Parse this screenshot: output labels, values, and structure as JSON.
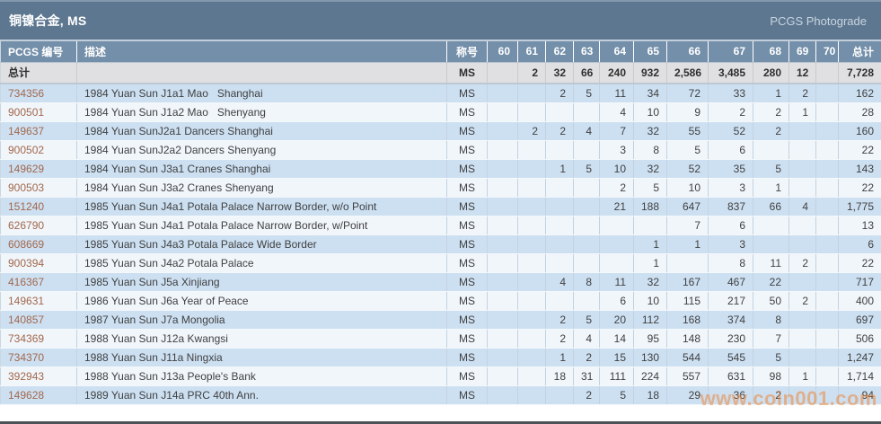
{
  "title": "铜镍合金, MS",
  "photograde_label": "PCGS Photograde",
  "watermark": "www.coin001.com",
  "colors": {
    "titlebar_bg": "#5d7790",
    "header_bg": "#748fa9",
    "totals_bg": "#e0e0e2",
    "row_odd_bg": "#cde0f2",
    "row_even_bg": "#f1f6fb",
    "pcgs_link": "#a2674b",
    "watermark": "#ee8638"
  },
  "columns": [
    "PCGS 编号",
    "描述",
    "称号",
    "60",
    "61",
    "62",
    "63",
    "64",
    "65",
    "66",
    "67",
    "68",
    "69",
    "70",
    "总计"
  ],
  "totals_row": {
    "label": "总计",
    "desc": "",
    "designation": "MS",
    "grades": [
      "",
      "2",
      "32",
      "66",
      "240",
      "932",
      "2,586",
      "3,485",
      "280",
      "12",
      ""
    ],
    "total": "7,728"
  },
  "rows": [
    {
      "pcgs": "734356",
      "desc": "1984 Yuan Sun J1a1 Mao   Shanghai",
      "designation": "MS",
      "grades": [
        "",
        "",
        "2",
        "5",
        "11",
        "34",
        "72",
        "33",
        "1",
        "2",
        ""
      ],
      "total": "162"
    },
    {
      "pcgs": "900501",
      "desc": "1984 Yuan Sun J1a2 Mao   Shenyang",
      "designation": "MS",
      "grades": [
        "",
        "",
        "",
        "",
        "4",
        "10",
        "9",
        "2",
        "2",
        "1",
        ""
      ],
      "total": "28"
    },
    {
      "pcgs": "149637",
      "desc": "1984 Yuan SunJ2a1 Dancers Shanghai",
      "designation": "MS",
      "grades": [
        "",
        "2",
        "2",
        "4",
        "7",
        "32",
        "55",
        "52",
        "2",
        "",
        ""
      ],
      "total": "160"
    },
    {
      "pcgs": "900502",
      "desc": "1984 Yuan SunJ2a2 Dancers Shenyang",
      "designation": "MS",
      "grades": [
        "",
        "",
        "",
        "",
        "3",
        "8",
        "5",
        "6",
        "",
        "",
        ""
      ],
      "total": "22"
    },
    {
      "pcgs": "149629",
      "desc": "1984 Yuan Sun J3a1 Cranes Shanghai",
      "designation": "MS",
      "grades": [
        "",
        "",
        "1",
        "5",
        "10",
        "32",
        "52",
        "35",
        "5",
        "",
        ""
      ],
      "total": "143"
    },
    {
      "pcgs": "900503",
      "desc": "1984 Yuan Sun J3a2 Cranes Shenyang",
      "designation": "MS",
      "grades": [
        "",
        "",
        "",
        "",
        "2",
        "5",
        "10",
        "3",
        "1",
        "",
        ""
      ],
      "total": "22"
    },
    {
      "pcgs": "151240",
      "desc": "1985 Yuan Sun J4a1 Potala Palace Narrow Border, w/o Point",
      "designation": "MS",
      "grades": [
        "",
        "",
        "",
        "",
        "21",
        "188",
        "647",
        "837",
        "66",
        "4",
        ""
      ],
      "total": "1,775"
    },
    {
      "pcgs": "626790",
      "desc": "1985 Yuan Sun J4a1 Potala Palace Narrow Border, w/Point",
      "designation": "MS",
      "grades": [
        "",
        "",
        "",
        "",
        "",
        "",
        "7",
        "6",
        "",
        "",
        ""
      ],
      "total": "13"
    },
    {
      "pcgs": "608669",
      "desc": "1985 Yuan Sun J4a3 Potala Palace Wide Border",
      "designation": "MS",
      "grades": [
        "",
        "",
        "",
        "",
        "",
        "1",
        "1",
        "3",
        "",
        "",
        ""
      ],
      "total": "6"
    },
    {
      "pcgs": "900394",
      "desc": "1985 Yuan Sun J4a2 Potala Palace",
      "designation": "MS",
      "grades": [
        "",
        "",
        "",
        "",
        "",
        "1",
        "",
        "8",
        "11",
        "2",
        ""
      ],
      "total": "22"
    },
    {
      "pcgs": "416367",
      "desc": "1985 Yuan Sun J5a Xinjiang",
      "designation": "MS",
      "grades": [
        "",
        "",
        "4",
        "8",
        "11",
        "32",
        "167",
        "467",
        "22",
        "",
        ""
      ],
      "total": "717"
    },
    {
      "pcgs": "149631",
      "desc": "1986 Yuan Sun J6a Year of Peace",
      "designation": "MS",
      "grades": [
        "",
        "",
        "",
        "",
        "6",
        "10",
        "115",
        "217",
        "50",
        "2",
        ""
      ],
      "total": "400"
    },
    {
      "pcgs": "140857",
      "desc": "1987 Yuan Sun J7a Mongolia",
      "designation": "MS",
      "grades": [
        "",
        "",
        "2",
        "5",
        "20",
        "112",
        "168",
        "374",
        "8",
        "",
        ""
      ],
      "total": "697"
    },
    {
      "pcgs": "734369",
      "desc": "1988 Yuan Sun J12a Kwangsi",
      "designation": "MS",
      "grades": [
        "",
        "",
        "2",
        "4",
        "14",
        "95",
        "148",
        "230",
        "7",
        "",
        ""
      ],
      "total": "506"
    },
    {
      "pcgs": "734370",
      "desc": "1988 Yuan Sun J11a Ningxia",
      "designation": "MS",
      "grades": [
        "",
        "",
        "1",
        "2",
        "15",
        "130",
        "544",
        "545",
        "5",
        "",
        ""
      ],
      "total": "1,247"
    },
    {
      "pcgs": "392943",
      "desc": "1988 Yuan Sun J13a People's Bank",
      "designation": "MS",
      "grades": [
        "",
        "",
        "18",
        "31",
        "111",
        "224",
        "557",
        "631",
        "98",
        "1",
        ""
      ],
      "total": "1,714"
    },
    {
      "pcgs": "149628",
      "desc": "1989 Yuan Sun J14a PRC 40th Ann.",
      "designation": "MS",
      "grades": [
        "",
        "",
        "",
        "2",
        "5",
        "18",
        "29",
        "36",
        "2",
        "",
        ""
      ],
      "total": "94"
    }
  ]
}
